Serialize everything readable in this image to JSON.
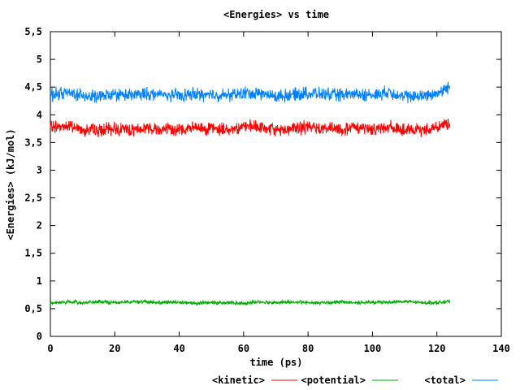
{
  "chart_data": {
    "type": "line",
    "title": "<Energies> vs time",
    "xlabel": "time (ps)",
    "ylabel": "<Energies> (kJ/mol)",
    "xlim": [
      0,
      140
    ],
    "ylim": [
      0,
      5.5
    ],
    "xticks": [
      0,
      20,
      40,
      60,
      80,
      100,
      120,
      140
    ],
    "yticks": [
      0,
      0.5,
      1,
      1.5,
      2,
      2.5,
      3,
      3.5,
      4,
      4.5,
      5,
      5.5
    ],
    "xtick_labels": [
      "0",
      "20",
      "40",
      "60",
      "80",
      "100",
      "120",
      "140"
    ],
    "ytick_labels": [
      "0",
      "0,5",
      "1",
      "1,5",
      "2",
      "2,5",
      "3",
      "3,5",
      "4",
      "4,5",
      "5",
      "5,5"
    ],
    "grid": false,
    "legend_position": "bottom",
    "series": [
      {
        "name": "<kinetic>",
        "color": "#ff0000",
        "x": [
          0,
          5,
          10,
          15,
          20,
          25,
          30,
          35,
          40,
          45,
          50,
          55,
          60,
          65,
          70,
          75,
          80,
          85,
          90,
          95,
          100,
          105,
          110,
          115,
          120,
          124
        ],
        "y": [
          3.78,
          3.8,
          3.74,
          3.71,
          3.76,
          3.73,
          3.77,
          3.74,
          3.73,
          3.76,
          3.75,
          3.73,
          3.79,
          3.77,
          3.72,
          3.75,
          3.78,
          3.76,
          3.73,
          3.77,
          3.74,
          3.79,
          3.71,
          3.72,
          3.78,
          3.85
        ]
      },
      {
        "name": "<potential>",
        "color": "#00aa00",
        "x": [
          0,
          5,
          10,
          15,
          20,
          25,
          30,
          35,
          40,
          45,
          50,
          55,
          60,
          65,
          70,
          75,
          80,
          85,
          90,
          95,
          100,
          105,
          110,
          115,
          120,
          124
        ],
        "y": [
          0.6,
          0.62,
          0.61,
          0.62,
          0.61,
          0.63,
          0.62,
          0.61,
          0.62,
          0.6,
          0.61,
          0.61,
          0.6,
          0.62,
          0.61,
          0.62,
          0.61,
          0.61,
          0.62,
          0.61,
          0.61,
          0.62,
          0.63,
          0.61,
          0.61,
          0.63
        ]
      },
      {
        "name": "<total>",
        "color": "#0080ff",
        "x": [
          0,
          5,
          10,
          15,
          20,
          25,
          30,
          35,
          40,
          45,
          50,
          55,
          60,
          65,
          70,
          75,
          80,
          85,
          90,
          95,
          100,
          105,
          110,
          115,
          120,
          124
        ],
        "y": [
          4.36,
          4.4,
          4.35,
          4.32,
          4.37,
          4.35,
          4.38,
          4.36,
          4.35,
          4.37,
          4.36,
          4.35,
          4.39,
          4.38,
          4.33,
          4.36,
          4.39,
          4.37,
          4.35,
          4.38,
          4.35,
          4.41,
          4.33,
          4.33,
          4.39,
          4.5
        ]
      }
    ]
  }
}
